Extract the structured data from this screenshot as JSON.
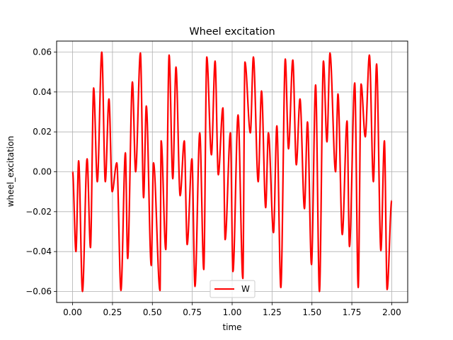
{
  "chart_data": {
    "type": "line",
    "title": "Wheel excitation",
    "xlabel": "time",
    "ylabel": "wheel_excitation",
    "xlim": [
      -0.1,
      2.1
    ],
    "ylim": [
      -0.0655,
      0.0655
    ],
    "xticks": [
      0.0,
      0.25,
      0.5,
      0.75,
      1.0,
      1.25,
      1.5,
      1.75,
      2.0
    ],
    "xtick_labels": [
      "0.00",
      "0.25",
      "0.50",
      "0.75",
      "1.00",
      "1.25",
      "1.50",
      "1.75",
      "2.00"
    ],
    "yticks": [
      -0.06,
      -0.04,
      -0.02,
      0.0,
      0.02,
      0.04,
      0.06
    ],
    "ytick_labels": [
      "−0.06",
      "−0.04",
      "−0.02",
      "0.00",
      "0.02",
      "0.04",
      "0.06"
    ],
    "grid": true,
    "legend_position": "bottom-center",
    "series": [
      {
        "name": "W",
        "color": "#ff0000",
        "x": [
          0.0,
          0.021,
          0.038,
          0.062,
          0.091,
          0.112,
          0.132,
          0.155,
          0.183,
          0.205,
          0.228,
          0.248,
          0.277,
          0.303,
          0.331,
          0.345,
          0.375,
          0.395,
          0.425,
          0.445,
          0.462,
          0.493,
          0.507,
          0.548,
          0.555,
          0.584,
          0.605,
          0.628,
          0.648,
          0.674,
          0.7,
          0.718,
          0.748,
          0.767,
          0.797,
          0.822,
          0.841,
          0.87,
          0.893,
          0.913,
          0.942,
          0.956,
          0.989,
          1.005,
          1.037,
          1.067,
          1.08,
          1.114,
          1.133,
          1.163,
          1.184,
          1.21,
          1.227,
          1.259,
          1.28,
          1.305,
          1.333,
          1.353,
          1.38,
          1.402,
          1.425,
          1.453,
          1.472,
          1.497,
          1.523,
          1.547,
          1.572,
          1.594,
          1.613,
          1.648,
          1.663,
          1.69,
          1.72,
          1.735,
          1.768,
          1.79,
          1.808,
          1.834,
          1.86,
          1.885,
          1.905,
          1.932,
          1.954,
          1.971,
          2.0
        ],
        "y": [
          0.0,
          -0.04,
          0.0055,
          -0.06,
          0.0065,
          -0.038,
          0.042,
          -0.005,
          0.06,
          -0.005,
          0.0365,
          -0.01,
          0.0045,
          -0.0595,
          0.0095,
          -0.0435,
          0.045,
          0.0,
          0.0595,
          -0.013,
          0.033,
          -0.047,
          0.0045,
          -0.0595,
          0.0155,
          -0.039,
          0.0585,
          -0.0035,
          0.0525,
          -0.012,
          0.0155,
          -0.0365,
          0.0065,
          -0.0575,
          0.0195,
          -0.049,
          0.0575,
          0.0085,
          0.0555,
          -0.0015,
          0.032,
          -0.034,
          0.0195,
          -0.05,
          0.0285,
          -0.0535,
          0.055,
          0.0195,
          0.0575,
          -0.005,
          0.0405,
          -0.018,
          0.0195,
          -0.0305,
          0.023,
          -0.058,
          0.0565,
          0.0115,
          0.056,
          0.0035,
          0.0365,
          -0.0185,
          0.025,
          -0.0465,
          0.0435,
          -0.06,
          0.0555,
          0.015,
          0.0595,
          0.0,
          0.039,
          -0.0315,
          0.0255,
          -0.0375,
          0.0445,
          -0.058,
          0.044,
          0.0175,
          0.0585,
          -0.005,
          0.054,
          -0.0395,
          0.0155,
          -0.059,
          -0.0145
        ]
      }
    ]
  }
}
